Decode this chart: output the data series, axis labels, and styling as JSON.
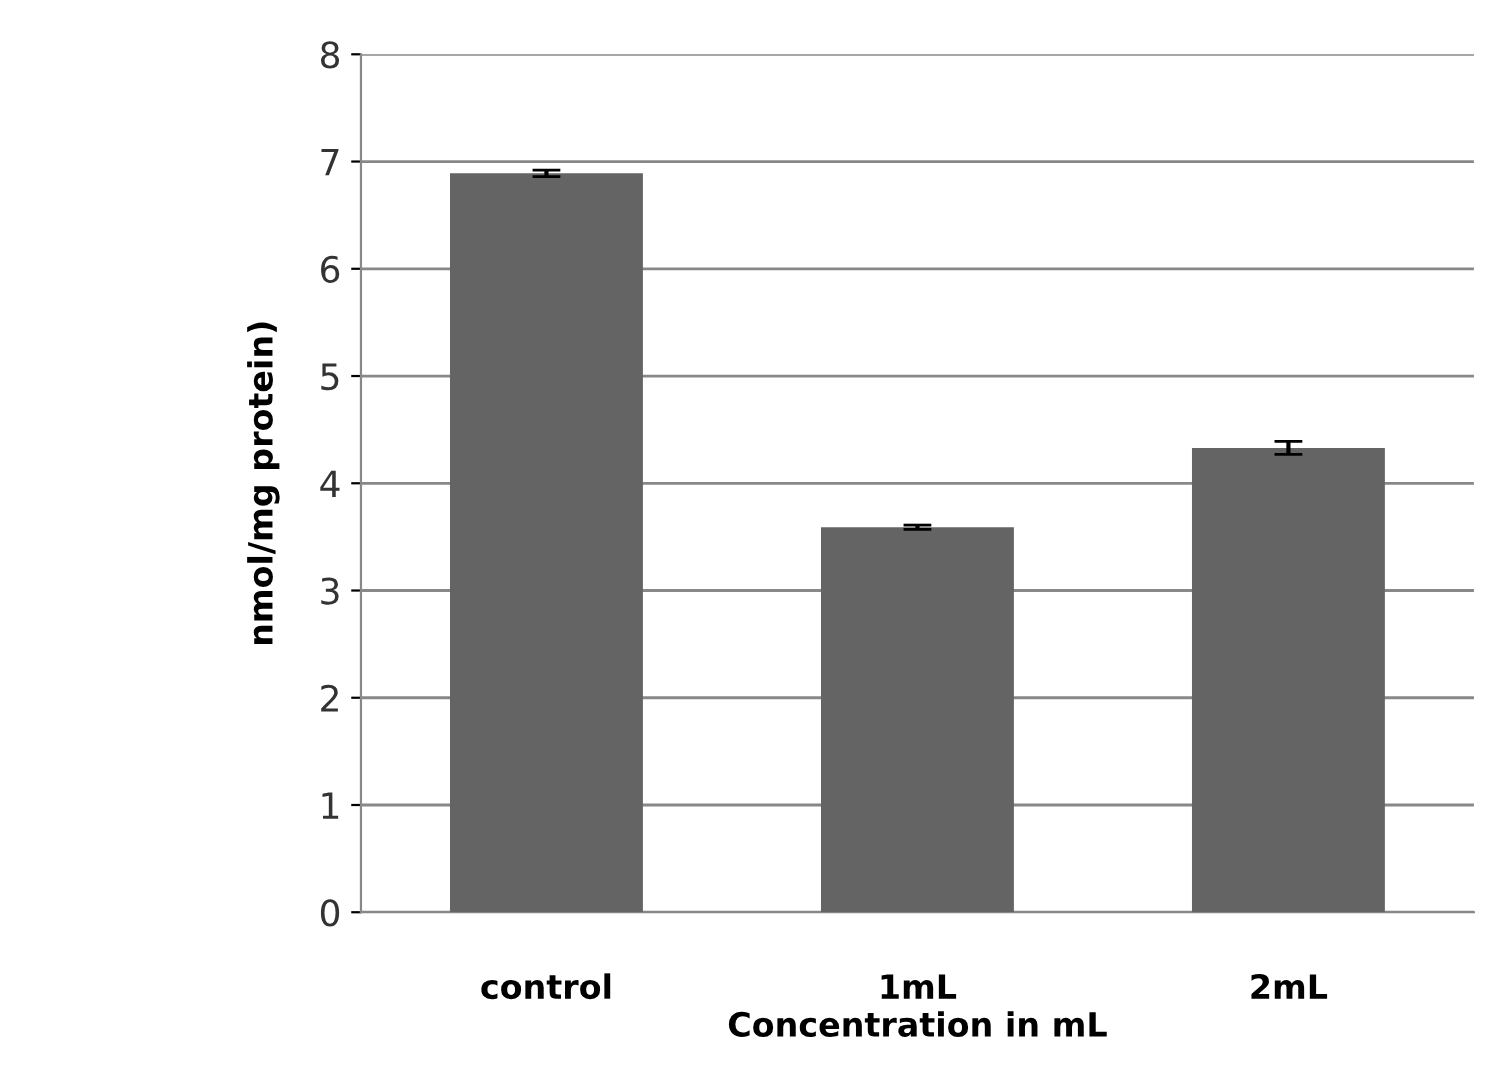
{
  "chart_data": {
    "type": "bar",
    "xlabel": "Concentration in mL",
    "ylabel": "nmol/mg protein)",
    "categories": [
      "control",
      "1mL",
      "2mL"
    ],
    "values": [
      6.89,
      3.59,
      4.33
    ],
    "errors": [
      0.03,
      0.02,
      0.06
    ],
    "color": "#646464",
    "ylim": [
      0,
      8
    ],
    "yticks": [
      0,
      1,
      2,
      3,
      4,
      5,
      6,
      7,
      8
    ],
    "grid": "y"
  }
}
